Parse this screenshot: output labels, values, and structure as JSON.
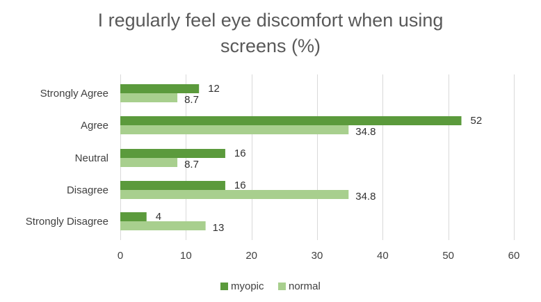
{
  "chart_data": {
    "type": "bar",
    "orientation": "horizontal",
    "title": "I regularly feel eye discomfort when using screens (%)",
    "title_lines": [
      "I regularly feel eye discomfort when using",
      "screens (%)"
    ],
    "categories": [
      "Strongly Agree",
      "Agree",
      "Neutral",
      "Disagree",
      "Strongly Disagree"
    ],
    "series": [
      {
        "name": "myopic",
        "color": "#5b9a3c",
        "values": [
          12,
          52,
          16,
          16,
          4
        ],
        "labels": [
          "12",
          "52",
          "16",
          "16",
          "4"
        ]
      },
      {
        "name": "normal",
        "color": "#a8cf8e",
        "values": [
          8.7,
          34.8,
          8.7,
          34.8,
          13
        ],
        "labels": [
          "8.7",
          "34.8",
          "8.7",
          "34.8",
          "13"
        ]
      }
    ],
    "xlim": [
      0,
      60
    ],
    "xticks": [
      "0",
      "10",
      "20",
      "30",
      "40",
      "50",
      "60"
    ],
    "xlabel": "",
    "ylabel": "",
    "grid": true,
    "legend_position": "bottom"
  }
}
